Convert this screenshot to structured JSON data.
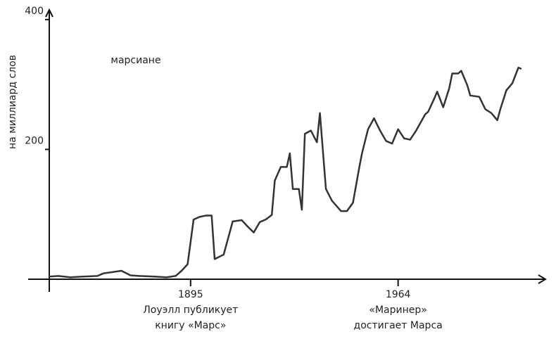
{
  "chart_data": {
    "type": "line",
    "ylabel": "на миллиард слов",
    "x": [
      1848,
      1851,
      1855,
      1859,
      1864,
      1866,
      1869,
      1872,
      1875,
      1878,
      1883,
      1887,
      1890,
      1892,
      1894,
      1896,
      1898,
      1900,
      1902,
      1903,
      1906,
      1909,
      1912,
      1914,
      1916,
      1918,
      1920,
      1922,
      1923,
      1925,
      1927,
      1928,
      1929,
      1931,
      1932,
      1933,
      1935,
      1937,
      1938,
      1940,
      1942,
      1945,
      1947,
      1949,
      1951,
      1952,
      1954,
      1956,
      1958,
      1960,
      1962,
      1964,
      1966,
      1968,
      1970,
      1973,
      1974,
      1976,
      1977,
      1979,
      1981,
      1982,
      1984,
      1985,
      1987,
      1988,
      1991,
      1993,
      1995,
      1997,
      1998,
      2000,
      2002,
      2004,
      2005
    ],
    "series": [
      {
        "name": "марсиане",
        "color": "#333333",
        "values": [
          4,
          5,
          3,
          4,
          5,
          9,
          11,
          13,
          6,
          5,
          4,
          3,
          5,
          13,
          23,
          92,
          96,
          98,
          98,
          31,
          38,
          89,
          91,
          81,
          72,
          88,
          92,
          99,
          152,
          173,
          173,
          194,
          139,
          139,
          107,
          224,
          229,
          211,
          256,
          139,
          121,
          105,
          105,
          118,
          170,
          194,
          231,
          248,
          229,
          213,
          209,
          231,
          217,
          215,
          229,
          254,
          258,
          278,
          289,
          265,
          294,
          317,
          317,
          321,
          299,
          283,
          281,
          262,
          256,
          245,
          262,
          291,
          302,
          326,
          324
        ]
      }
    ],
    "xlim": [
      1848,
      2013
    ],
    "ylim": [
      0,
      415
    ],
    "xticks": [
      1895,
      1964
    ],
    "yticks": [
      200,
      400
    ],
    "annotations": [
      [
        "Лоуэлл публикует",
        "книгу «Марс»"
      ],
      [
        "«Маринер»",
        "достигает Марса"
      ]
    ]
  }
}
